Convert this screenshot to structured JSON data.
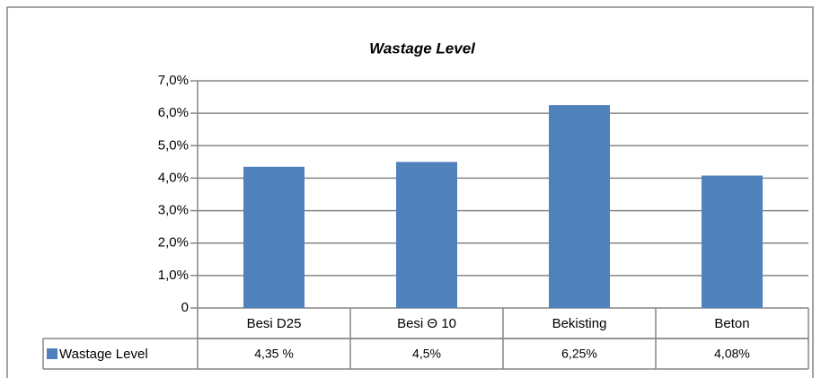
{
  "chart_data": {
    "type": "bar",
    "title": "Wastage Level",
    "categories": [
      "Besi D25",
      "Besi Θ 10",
      "Bekisting",
      "Beton"
    ],
    "series": [
      {
        "name": "Wastage Level",
        "color": "#4f81bd",
        "values": [
          4.35,
          4.5,
          6.25,
          4.08
        ],
        "value_labels": [
          "4,35 %",
          "4,5%",
          "6,25%",
          "4,08%"
        ]
      }
    ],
    "ylim": [
      0,
      7
    ],
    "yticks": [
      0,
      {
        "value": 1,
        "label": "1,0%"
      },
      {
        "value": 2,
        "label": "2,0%"
      },
      {
        "value": 3,
        "label": "3,0%"
      },
      {
        "value": 4,
        "label": "4,0%"
      },
      {
        "value": 5,
        "label": "5,0%"
      },
      {
        "value": 6,
        "label": "6,0%"
      },
      {
        "value": 7,
        "label": "7,0%"
      }
    ],
    "grid": true
  }
}
